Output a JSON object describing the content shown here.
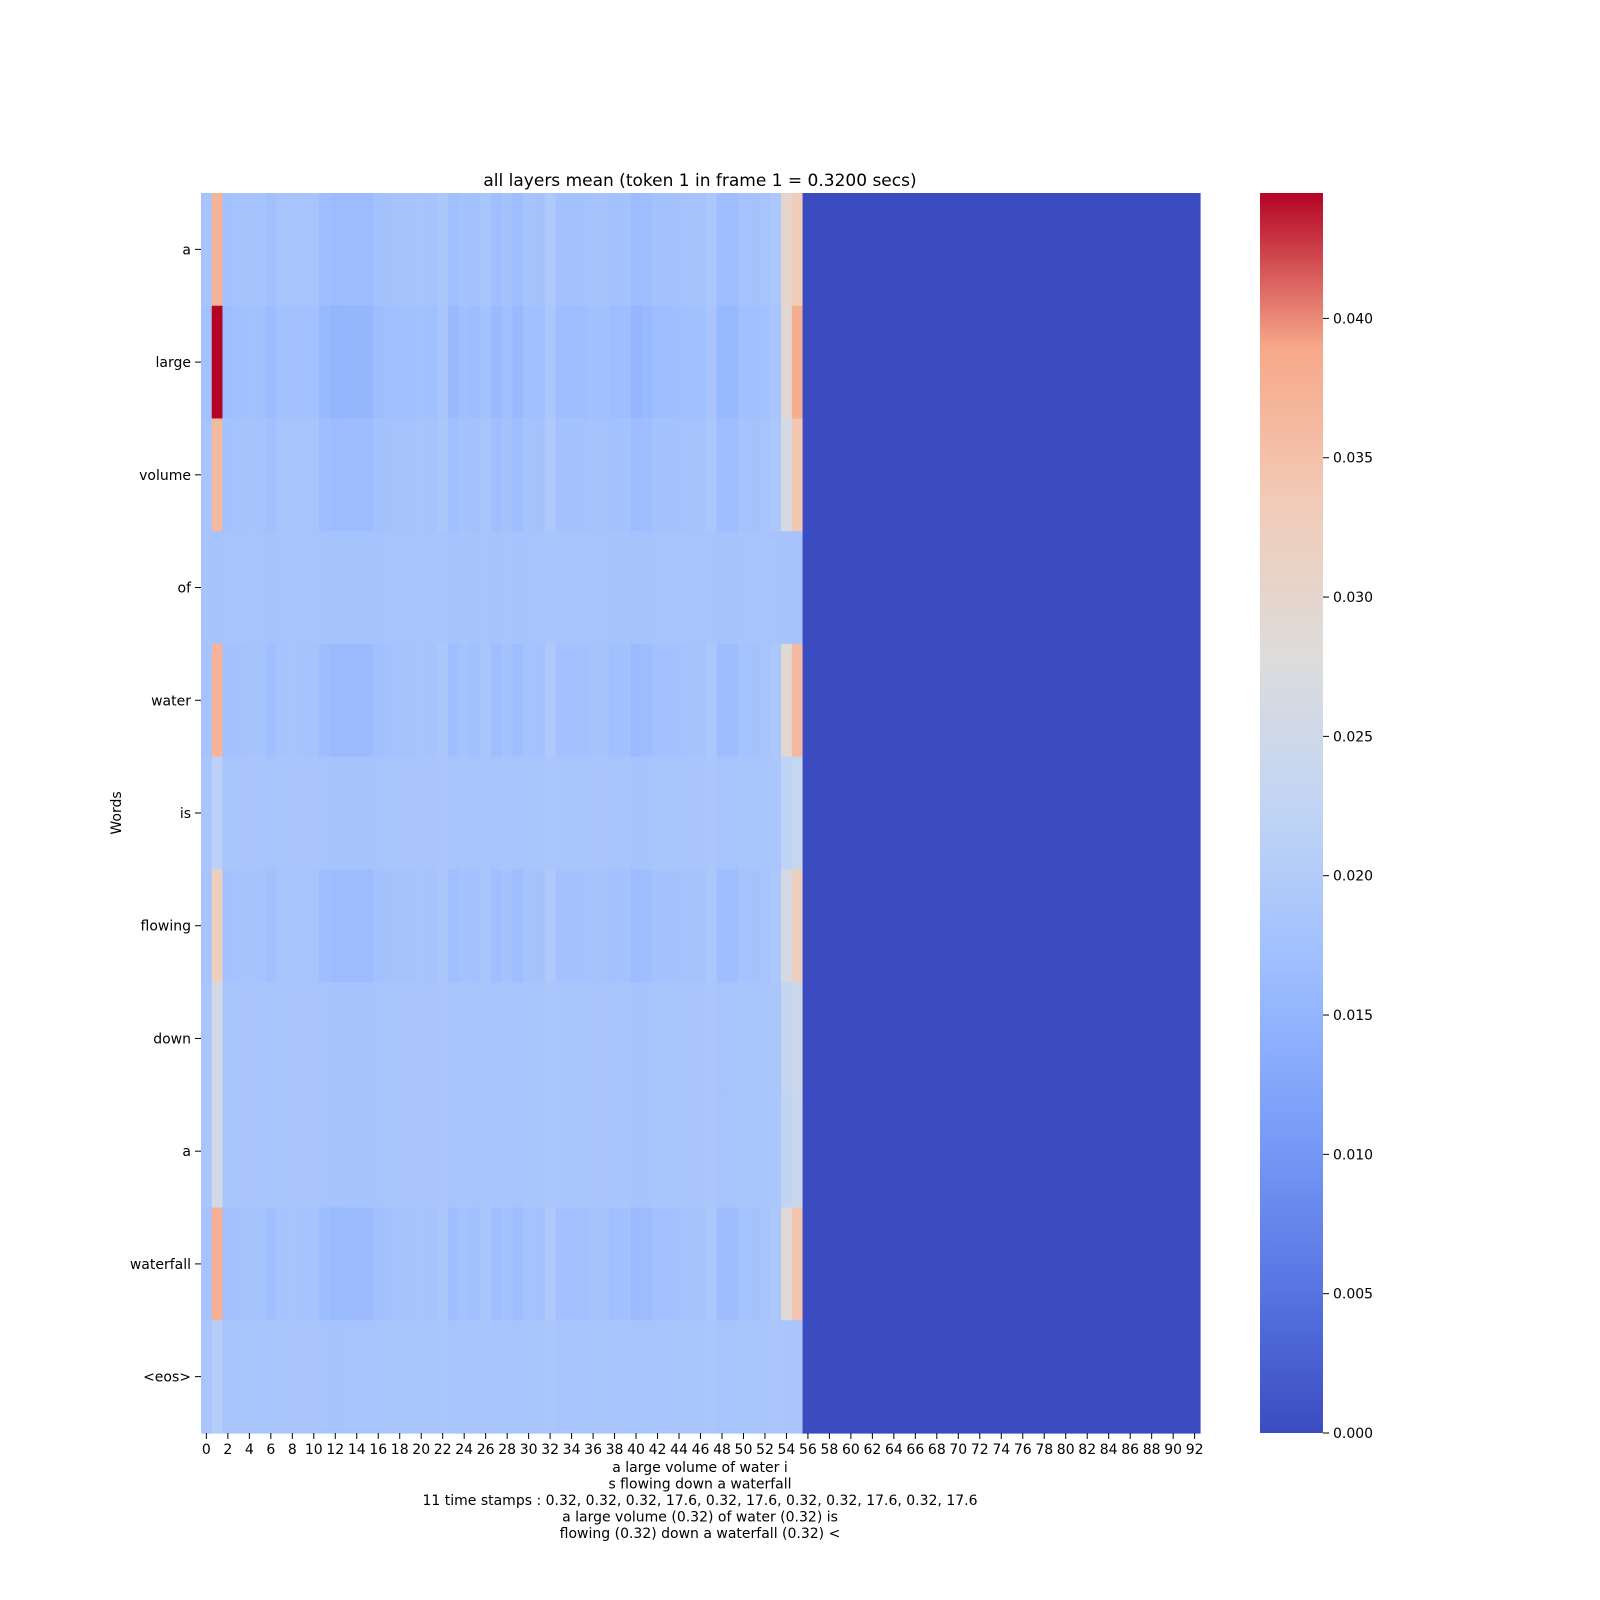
{
  "chart_data": {
    "type": "heatmap",
    "title": "all layers mean (token 1 in frame 1  = 0.3200 secs)",
    "ylabel": "Words",
    "xlabel_lines": [
      "a large volume of water i",
      "s flowing down a waterfall",
      "11 time stamps : 0.32, 0.32, 0.32, 17.6, 0.32, 17.6, 0.32, 0.32, 17.6, 0.32, 17.6",
      "a large volume (0.32) of water (0.32) is",
      "flowing (0.32) down a waterfall (0.32) <"
    ],
    "rows": [
      "a",
      "large",
      "volume",
      "of",
      "water",
      "is",
      "flowing",
      "down",
      "a",
      "waterfall",
      "<eos>"
    ],
    "n_columns": 93,
    "x_tick_labels": [
      "0",
      "2",
      "4",
      "6",
      "8",
      "10",
      "12",
      "14",
      "16",
      "18",
      "20",
      "22",
      "24",
      "26",
      "28",
      "30",
      "32",
      "34",
      "36",
      "38",
      "40",
      "42",
      "44",
      "46",
      "48",
      "50",
      "52",
      "54",
      "56",
      "58",
      "60",
      "62",
      "64",
      "66",
      "68",
      "70",
      "72",
      "74",
      "76",
      "78",
      "80",
      "82",
      "84",
      "86",
      "88",
      "90",
      "92"
    ],
    "nonzero_columns": [
      0,
      55
    ],
    "zero_columns": [
      56,
      92
    ],
    "colormap": "coolwarm",
    "vmin": 0.0,
    "vmax": 0.0445,
    "colorbar_ticks": [
      "0.000",
      "0.005",
      "0.010",
      "0.015",
      "0.020",
      "0.025",
      "0.030",
      "0.035",
      "0.040"
    ],
    "column_profile": [
      0.55,
      1.0,
      0.3,
      0.45,
      0.55,
      0.5,
      0.1,
      0.55,
      0.6,
      0.55,
      0.55,
      -0.1,
      -0.35,
      -0.3,
      -0.3,
      -0.3,
      0.2,
      0.4,
      0.5,
      0.5,
      0.6,
      0.5,
      1.0,
      0.0,
      0.4,
      0.2,
      0.7,
      0.0,
      0.4,
      -0.1,
      0.5,
      0.4,
      1.2,
      0.3,
      0.3,
      0.3,
      0.5,
      0.5,
      0.2,
      0.3,
      -0.3,
      -0.1,
      0.3,
      0.3,
      0.4,
      0.5,
      0.5,
      1.0,
      -0.1,
      -0.1,
      0.5,
      0.4,
      0.6,
      1.0,
      0.0,
      0.0
    ],
    "row_params": [
      {
        "word": "a",
        "base": 0.017,
        "amp": 0.002,
        "c1": 0.037,
        "c54": 0.03,
        "c55": 0.033
      },
      {
        "word": "large",
        "base": 0.016,
        "amp": 0.0025,
        "c1": 0.0445,
        "c54": 0.029,
        "c55": 0.038
      },
      {
        "word": "volume",
        "base": 0.017,
        "amp": 0.002,
        "c1": 0.036,
        "c54": 0.026,
        "c55": 0.034
      },
      {
        "word": "of",
        "base": 0.018,
        "amp": 0.0003,
        "c1": 0.018,
        "c54": 0.018,
        "c55": 0.018
      },
      {
        "word": "water",
        "base": 0.0168,
        "amp": 0.0022,
        "c1": 0.037,
        "c54": 0.029,
        "c55": 0.036
      },
      {
        "word": "is",
        "base": 0.0182,
        "amp": 0.0005,
        "c1": 0.0215,
        "c54": 0.022,
        "c55": 0.0235
      },
      {
        "word": "flowing",
        "base": 0.017,
        "amp": 0.002,
        "c1": 0.032,
        "c54": 0.026,
        "c55": 0.032
      },
      {
        "word": "down",
        "base": 0.0182,
        "amp": 0.0005,
        "c1": 0.0255,
        "c54": 0.023,
        "c55": 0.0245
      },
      {
        "word": "a",
        "base": 0.0182,
        "amp": 0.0005,
        "c1": 0.0255,
        "c54": 0.0225,
        "c55": 0.024
      },
      {
        "word": "waterfall",
        "base": 0.0168,
        "amp": 0.0022,
        "c1": 0.0375,
        "c54": 0.0285,
        "c55": 0.0345
      },
      {
        "word": "<eos>",
        "base": 0.0182,
        "amp": 0.0004,
        "c1": 0.0205,
        "c54": 0.0185,
        "c55": 0.0185
      }
    ]
  }
}
